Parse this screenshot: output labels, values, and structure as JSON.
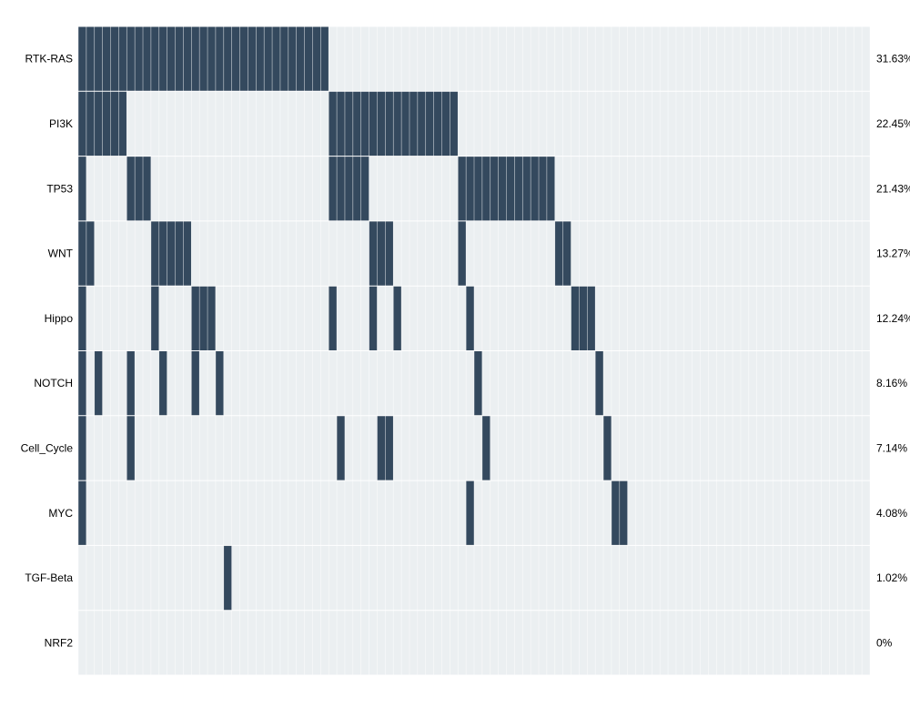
{
  "colors": {
    "altered": "#34495e",
    "background": "#ebeff1",
    "grid": "#ffffff"
  },
  "chart_data": {
    "type": "heatmap",
    "title": "",
    "xlabel": "",
    "ylabel": "",
    "n_samples": 98,
    "legend": "none",
    "grid": true,
    "rows": [
      {
        "label": "RTK-RAS",
        "pct": "31.63%",
        "altered": [
          0,
          1,
          2,
          3,
          4,
          5,
          6,
          7,
          8,
          9,
          10,
          11,
          12,
          13,
          14,
          15,
          16,
          17,
          18,
          19,
          20,
          21,
          22,
          23,
          24,
          25,
          26,
          27,
          28,
          29,
          30
        ]
      },
      {
        "label": "PI3K",
        "pct": "22.45%",
        "altered": [
          0,
          1,
          2,
          3,
          4,
          5,
          31,
          32,
          33,
          34,
          35,
          36,
          37,
          38,
          39,
          40,
          41,
          42,
          43,
          44,
          45,
          46
        ]
      },
      {
        "label": "TP53",
        "pct": "21.43%",
        "altered": [
          0,
          6,
          7,
          8,
          31,
          32,
          33,
          34,
          35,
          47,
          48,
          49,
          50,
          51,
          52,
          53,
          54,
          55,
          56,
          57,
          58
        ]
      },
      {
        "label": "WNT",
        "pct": "13.27%",
        "altered": [
          0,
          1,
          9,
          10,
          11,
          12,
          13,
          36,
          37,
          38,
          47,
          59,
          60
        ]
      },
      {
        "label": "Hippo",
        "pct": "12.24%",
        "altered": [
          0,
          9,
          14,
          15,
          16,
          31,
          36,
          39,
          48,
          61,
          62,
          63
        ]
      },
      {
        "label": "NOTCH",
        "pct": "8.16%",
        "altered": [
          0,
          2,
          6,
          10,
          14,
          17,
          49,
          64
        ]
      },
      {
        "label": "Cell_Cycle",
        "pct": "7.14%",
        "altered": [
          0,
          6,
          32,
          37,
          38,
          50,
          65
        ]
      },
      {
        "label": "MYC",
        "pct": "4.08%",
        "altered": [
          0,
          48,
          66,
          67
        ]
      },
      {
        "label": "TGF-Beta",
        "pct": "1.02%",
        "altered": [
          18
        ]
      },
      {
        "label": "NRF2",
        "pct": "0%",
        "altered": []
      }
    ]
  }
}
